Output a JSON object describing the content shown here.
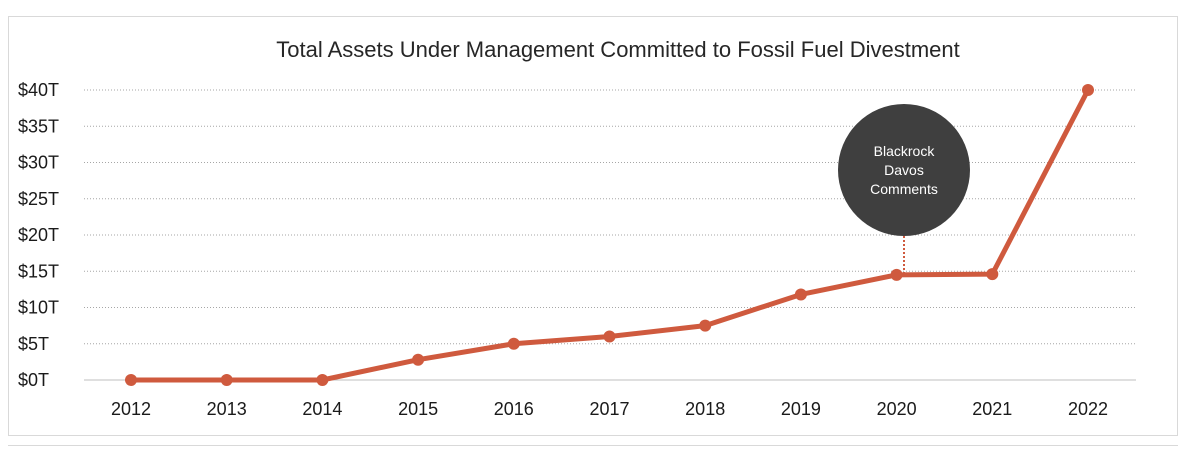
{
  "chart_data": {
    "type": "line",
    "title": "Total Assets Under Management Committed to Fossil Fuel Divestment",
    "xlabel": "",
    "ylabel": "",
    "categories": [
      "2012",
      "2013",
      "2014",
      "2015",
      "2016",
      "2017",
      "2018",
      "2019",
      "2020",
      "2021",
      "2022"
    ],
    "series": [
      {
        "values": [
          0,
          0,
          0,
          2.8,
          5.0,
          6.0,
          7.5,
          11.8,
          14.5,
          14.6,
          40.0
        ],
        "color": "#cf5a3e"
      }
    ],
    "ylim": [
      0,
      40
    ],
    "yticks": [
      0,
      5,
      10,
      15,
      20,
      25,
      30,
      35,
      40
    ],
    "ytick_labels": [
      "$0T",
      "$5T",
      "$10T",
      "$15T",
      "$20T",
      "$25T",
      "$30T",
      "$35T",
      "$40T"
    ],
    "grid": true,
    "grid_style": "dotted",
    "annotation": {
      "lines": [
        "Blackrock",
        "Davos",
        "Comments"
      ],
      "category": "2020",
      "bubble_color": "#3f3f3f",
      "connector_color": "#cf5a3e"
    }
  }
}
